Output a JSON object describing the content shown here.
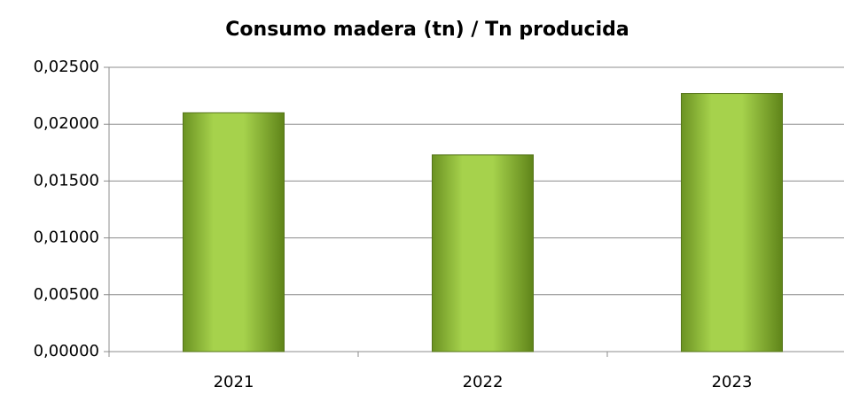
{
  "chart_data": {
    "type": "bar",
    "title": "Consumo madera (tn) / Tn producida",
    "categories": [
      "2021",
      "2022",
      "2023"
    ],
    "values": [
      0.021,
      0.0173,
      0.0227
    ],
    "color": "#9acd3c",
    "ylim": [
      0,
      0.025
    ],
    "yticks": [
      {
        "value": 0,
        "label": "0,00000"
      },
      {
        "value": 0.005,
        "label": "0,00500"
      },
      {
        "value": 0.01,
        "label": "0,01000"
      },
      {
        "value": 0.015,
        "label": "0,01500"
      },
      {
        "value": 0.02,
        "label": "0,02000"
      },
      {
        "value": 0.025,
        "label": "0,02500"
      }
    ],
    "grid": true
  }
}
